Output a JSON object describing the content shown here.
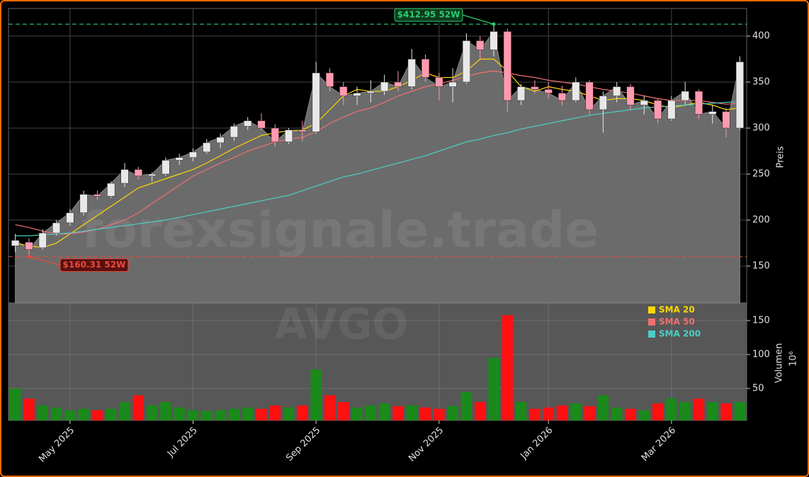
{
  "chart_data": {
    "type": "candlestick",
    "watermark": "forexsignale.trade",
    "ticker": "AVGO",
    "categories": [
      null,
      null,
      null,
      null,
      "May 2025",
      null,
      null,
      null,
      null,
      null,
      null,
      null,
      null,
      "Jul 2025",
      null,
      null,
      null,
      null,
      null,
      null,
      null,
      null,
      "Sep 2025",
      null,
      null,
      null,
      null,
      null,
      null,
      null,
      null,
      "Nov 2025",
      null,
      null,
      null,
      null,
      null,
      null,
      null,
      "Jan 2026",
      null,
      null,
      null,
      null,
      null,
      null,
      null,
      null,
      "Mar 2026",
      null,
      null,
      null,
      null,
      null
    ],
    "open": [
      172,
      176,
      170,
      186,
      197,
      208,
      228,
      226,
      240,
      255,
      248,
      250,
      265,
      268,
      274,
      284,
      290,
      302,
      308,
      300,
      285,
      298,
      296,
      360,
      345,
      335,
      338,
      340,
      350,
      345,
      375,
      355,
      345,
      350,
      395,
      385,
      405,
      330,
      345,
      342,
      338,
      330,
      350,
      320,
      335,
      345,
      325,
      330,
      310,
      330,
      340,
      315,
      318,
      300
    ],
    "high": [
      185,
      180,
      190,
      200,
      212,
      232,
      232,
      242,
      262,
      258,
      252,
      268,
      272,
      278,
      288,
      294,
      305,
      312,
      316,
      304,
      300,
      308,
      372,
      365,
      350,
      345,
      352,
      358,
      362,
      386,
      380,
      360,
      365,
      403,
      400,
      412.95,
      408,
      348,
      352,
      350,
      346,
      355,
      352,
      340,
      350,
      348,
      335,
      332,
      335,
      350,
      342,
      325,
      322,
      378
    ],
    "low": [
      165,
      160.31,
      168,
      183,
      194,
      205,
      222,
      224,
      236,
      244,
      242,
      248,
      260,
      264,
      272,
      278,
      286,
      298,
      298,
      280,
      283,
      286,
      294,
      340,
      325,
      325,
      328,
      336,
      340,
      342,
      350,
      330,
      328,
      348,
      375,
      378,
      318,
      325,
      338,
      332,
      325,
      328,
      315,
      295,
      328,
      320,
      315,
      305,
      308,
      325,
      310,
      305,
      290,
      298
    ],
    "close": [
      178,
      168,
      186,
      197,
      208,
      228,
      226,
      240,
      255,
      248,
      250,
      265,
      268,
      274,
      284,
      290,
      302,
      308,
      300,
      285,
      298,
      296,
      360,
      345,
      335,
      338,
      340,
      350,
      345,
      375,
      355,
      345,
      350,
      395,
      385,
      405,
      330,
      345,
      342,
      338,
      330,
      350,
      320,
      335,
      345,
      325,
      330,
      310,
      330,
      340,
      315,
      318,
      300,
      372
    ],
    "up_color": "#e8e8e8",
    "down_color": "#ff9ab0",
    "area_color": "#6b6b6b",
    "series": [
      {
        "name": "SMA 20",
        "color": "#ffd700",
        "values": [
          175,
          172,
          170,
          175,
          185,
          195,
          205,
          215,
          225,
          235,
          240,
          245,
          250,
          255,
          262,
          270,
          278,
          285,
          292,
          295,
          297,
          298,
          305,
          320,
          335,
          342,
          340,
          340,
          345,
          352,
          360,
          355,
          355,
          362,
          375,
          375,
          362,
          345,
          340,
          345,
          342,
          340,
          335,
          330,
          332,
          332,
          330,
          325,
          322,
          325,
          328,
          325,
          320,
          322
        ]
      },
      {
        "name": "SMA 50",
        "color": "#f07070",
        "values": [
          195,
          192,
          188,
          185,
          185,
          187,
          190,
          195,
          200,
          208,
          218,
          228,
          238,
          248,
          255,
          262,
          268,
          275,
          280,
          285,
          288,
          290,
          296,
          305,
          312,
          318,
          322,
          328,
          335,
          340,
          345,
          348,
          352,
          356,
          360,
          362,
          360,
          357,
          355,
          352,
          350,
          348,
          345,
          342,
          340,
          338,
          335,
          332,
          330,
          330,
          330,
          328,
          326,
          327
        ]
      },
      {
        "name": "SMA 200",
        "color": "#4ecdc4",
        "values": [
          183,
          183,
          184,
          185,
          186,
          188,
          190,
          192,
          194,
          196,
          198,
          200,
          203,
          206,
          209,
          212,
          215,
          218,
          221,
          224,
          227,
          232,
          237,
          242,
          247,
          250,
          254,
          258,
          262,
          266,
          270,
          275,
          280,
          285,
          288,
          292,
          295,
          299,
          302,
          305,
          308,
          311,
          314,
          316,
          318,
          320,
          322,
          323,
          324,
          325,
          326,
          327,
          328,
          329
        ]
      }
    ],
    "ylabel": "Preis",
    "ylim": [
      110,
      430
    ],
    "yticks": [
      150,
      200,
      250,
      300,
      350,
      400
    ],
    "grid": true,
    "annotations": [
      {
        "label": "$412.95 52W",
        "value": 412.95,
        "color": "#2ecc71"
      },
      {
        "label": "$160.31 52W",
        "value": 160.31,
        "color": "#e74c3c"
      }
    ],
    "volume": {
      "ylabel": "Volumen",
      "unit": "10⁶",
      "ylim": [
        3,
        176
      ],
      "yticks": [
        50,
        100,
        150
      ],
      "up_color": "#1a8a1a",
      "down_color": "#ff1010",
      "values": [
        50,
        35,
        25,
        22,
        18,
        20,
        18,
        20,
        30,
        40,
        25,
        30,
        22,
        18,
        17,
        18,
        20,
        22,
        20,
        25,
        22,
        25,
        78,
        40,
        30,
        22,
        25,
        28,
        24,
        25,
        22,
        20,
        24,
        45,
        30,
        95,
        158,
        30,
        20,
        22,
        25,
        28,
        24,
        40,
        22,
        20,
        18,
        28,
        35,
        30,
        35,
        30,
        28,
        30
      ]
    }
  }
}
